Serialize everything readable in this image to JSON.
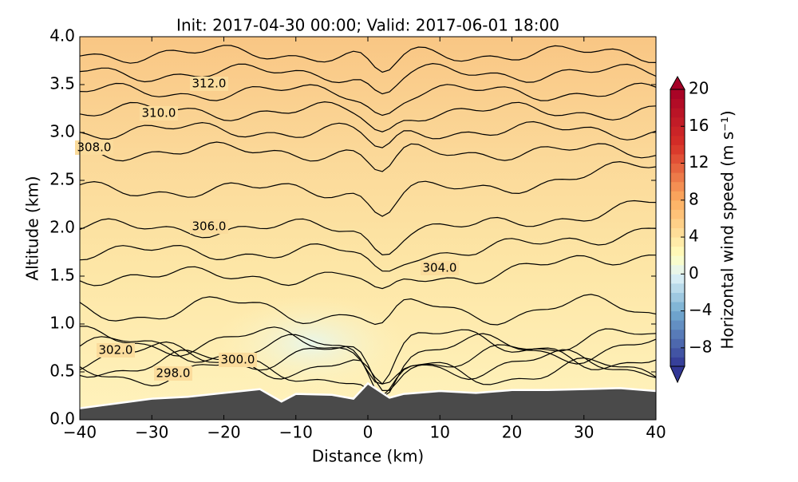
{
  "chart_data": {
    "type": "cross-section",
    "title": "Init: 2017-04-30 00:00; Valid: 2017-06-01 18:00",
    "x_label": "Distance (km)",
    "y_label": "Altitude (km)",
    "xlim": [
      -40,
      40
    ],
    "ylim": [
      0,
      4
    ],
    "xticks": [
      {
        "value": -40,
        "label": "−40"
      },
      {
        "value": -30,
        "label": "−30"
      },
      {
        "value": -20,
        "label": "−20"
      },
      {
        "value": -10,
        "label": "−10"
      },
      0,
      10,
      20,
      30,
      40
    ],
    "yticks": [
      {
        "value": 0,
        "label": "0.0"
      },
      0.5,
      {
        "value": 1,
        "label": "1.0"
      },
      1.5,
      {
        "value": 2,
        "label": "2.0"
      },
      2.5,
      {
        "value": 3,
        "label": "3.0"
      },
      3.5,
      {
        "value": 4,
        "label": "4.0"
      }
    ],
    "terrain": {
      "x": [
        -40,
        -35,
        -30,
        -25,
        -20,
        -15,
        -12,
        -10,
        -5,
        -2,
        0,
        3,
        5,
        10,
        15,
        20,
        25,
        30,
        35,
        40
      ],
      "values": [
        0.12,
        0.17,
        0.22,
        0.24,
        0.28,
        0.32,
        0.19,
        0.27,
        0.26,
        0.22,
        0.38,
        0.23,
        0.27,
        0.3,
        0.28,
        0.31,
        0.31,
        0.32,
        0.33,
        0.3
      ]
    },
    "contour_levels": [
      298,
      299,
      300,
      301,
      302,
      303,
      304,
      305,
      306,
      307,
      308,
      309,
      310,
      311,
      312,
      313
    ],
    "contour_labels": [
      {
        "value": 312,
        "label": "312.0"
      },
      {
        "value": 310,
        "label": "310.0"
      },
      {
        "value": 308,
        "label": "308.0"
      },
      {
        "value": 306,
        "label": "306.0"
      },
      {
        "value": 304,
        "label": "304.0"
      },
      {
        "value": 302,
        "label": "302.0"
      },
      {
        "value": 300,
        "label": "300.0"
      },
      {
        "value": 298,
        "label": "298.0"
      }
    ],
    "colorbar": {
      "label": "Horizontal wind speed (m s⁻¹)",
      "lim": [
        -10,
        20
      ],
      "ticks": [
        {
          "value": -8,
          "label": "−8"
        },
        {
          "value": -4,
          "label": "−4"
        },
        0,
        4,
        8,
        12,
        16,
        20
      ]
    }
  }
}
